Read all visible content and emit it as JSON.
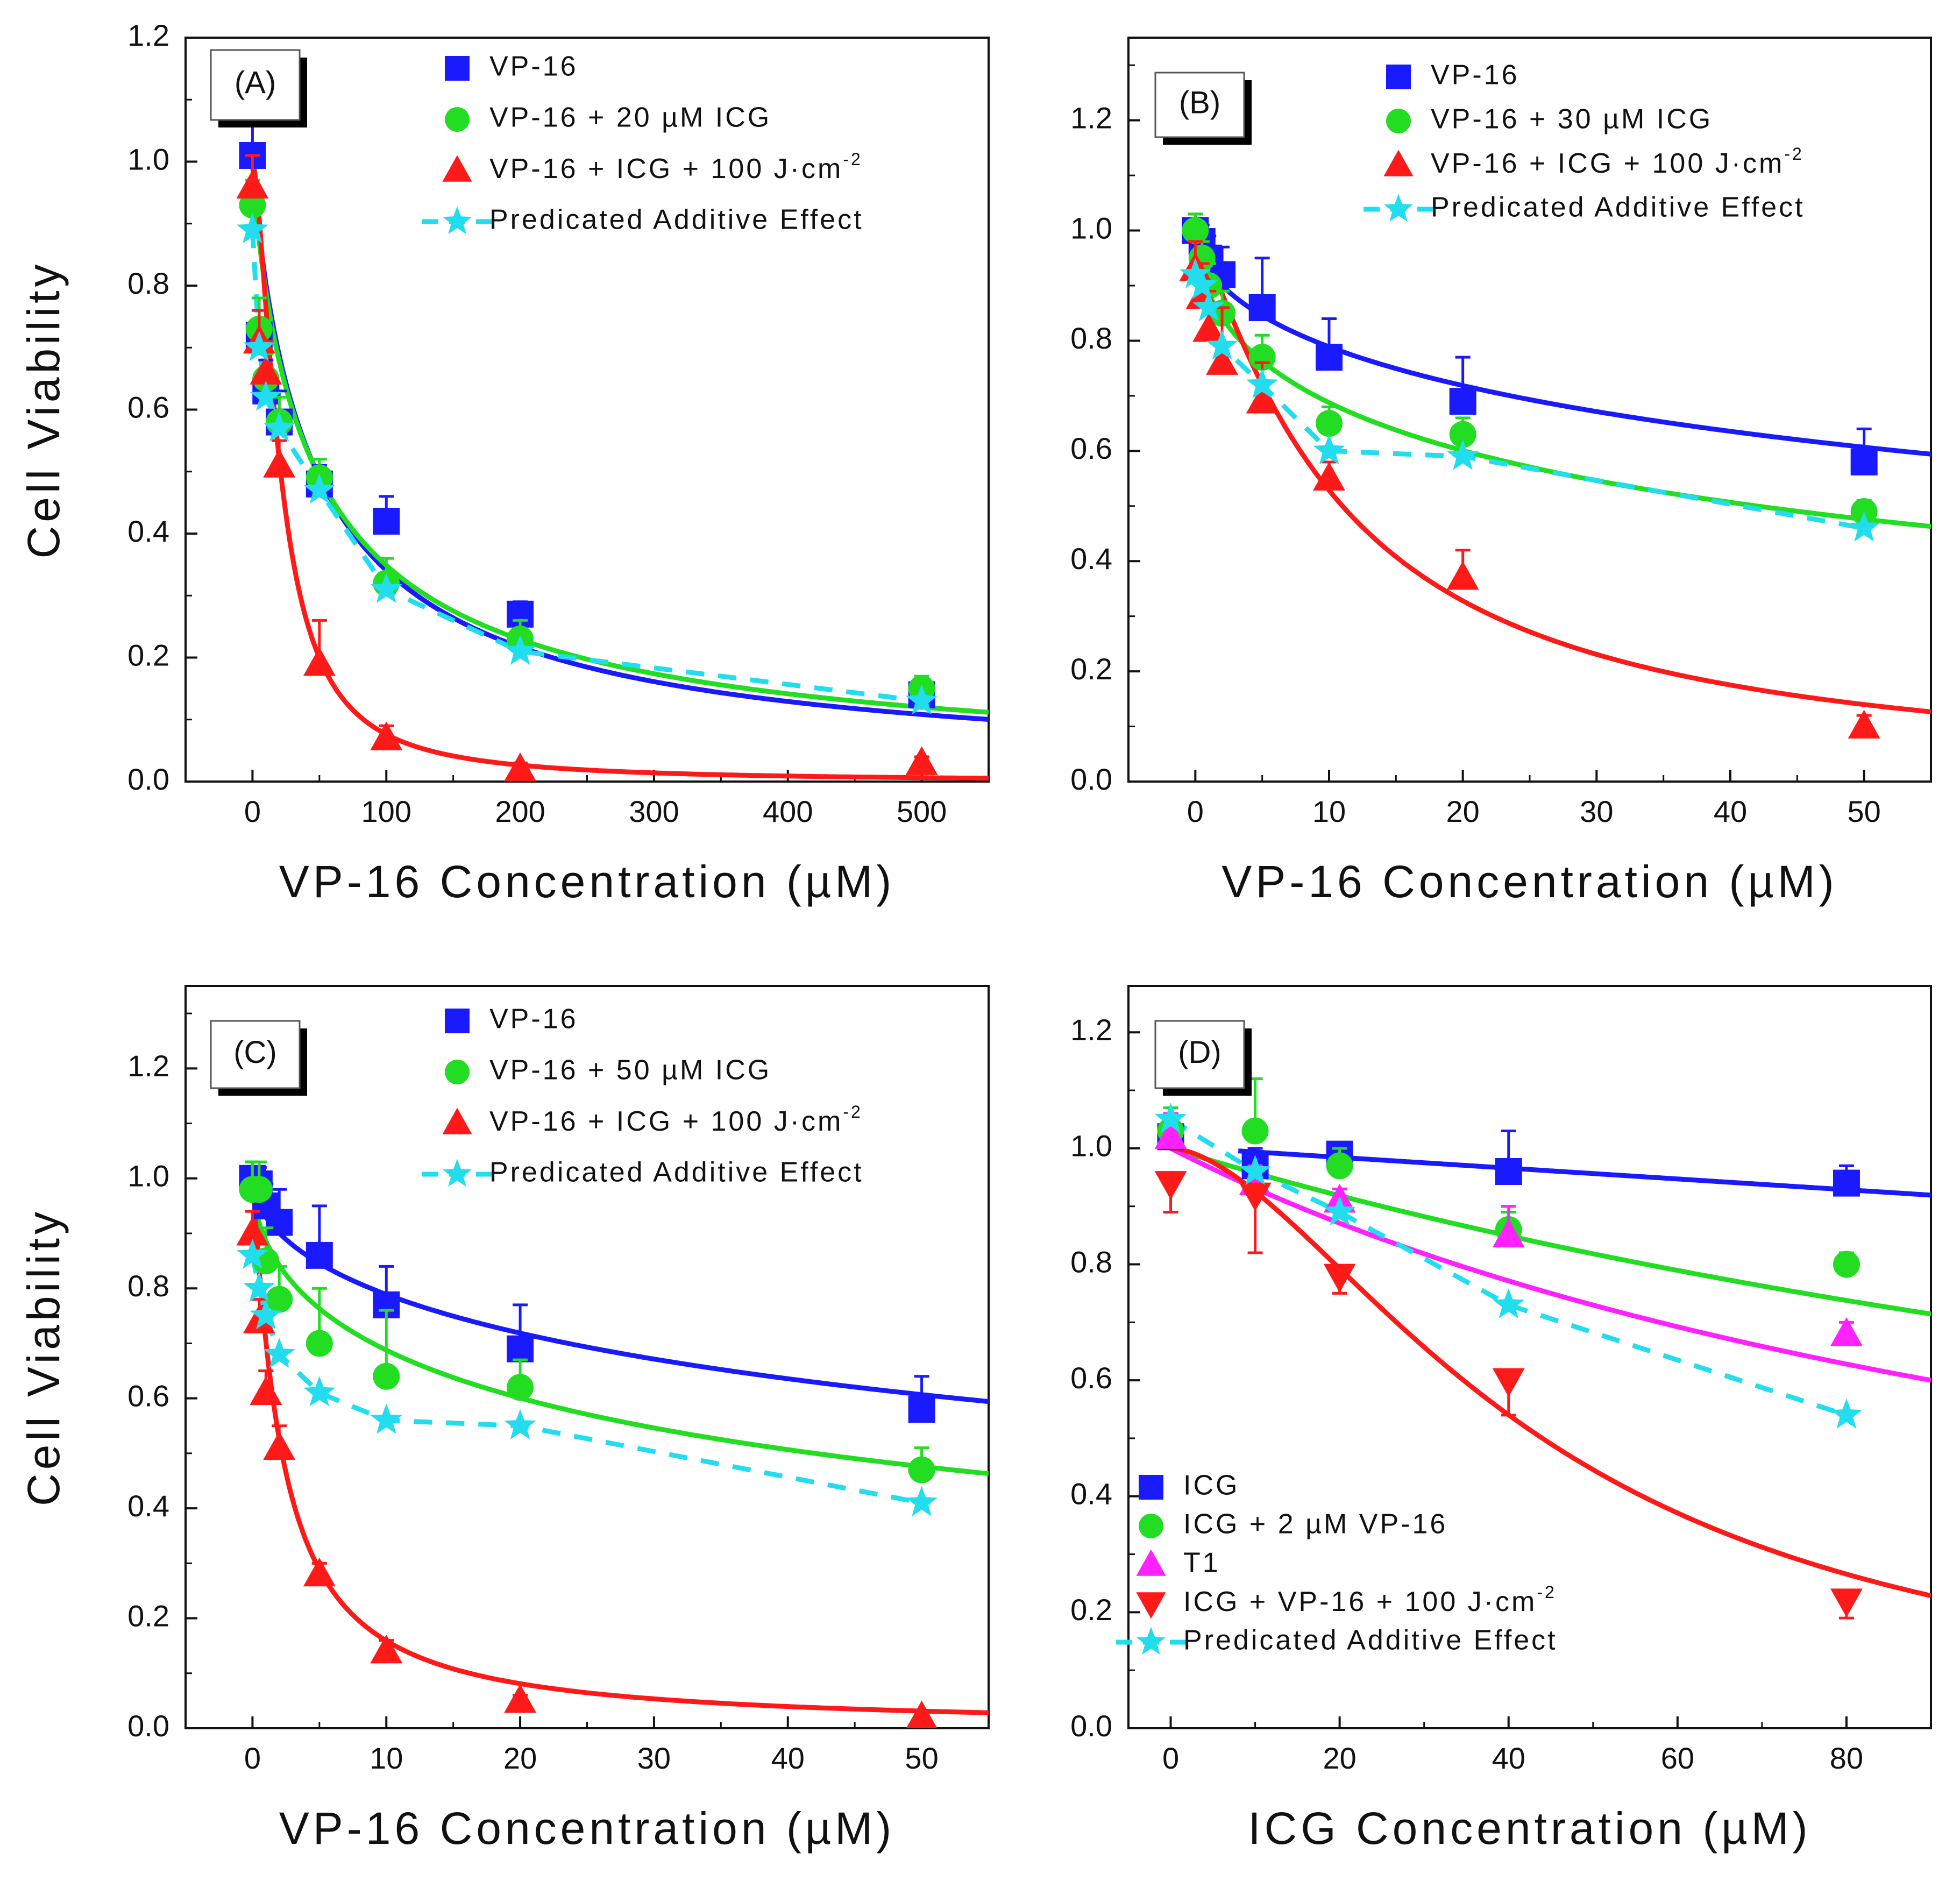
{
  "chart_data": [
    {
      "panel": "(A)",
      "type": "scatter",
      "xlabel": "VP-16 Concentration (µM)",
      "ylabel": "Cell Viability",
      "xlim": [
        -50,
        550
      ],
      "ylim": [
        0.0,
        1.2
      ],
      "xticks": [
        0,
        100,
        200,
        300,
        400,
        500
      ],
      "yticks": [
        0.0,
        0.2,
        0.4,
        0.6,
        0.8,
        1.0,
        1.2
      ],
      "xtick_labels": [
        "0",
        "100",
        "200",
        "300",
        "400",
        "500"
      ],
      "ytick_labels": [
        "0.0",
        "0.2",
        "0.4",
        "0.6",
        "0.8",
        "1.0",
        "1.2"
      ],
      "legend_position": "top-right",
      "series": [
        {
          "name": "VP-16",
          "marker": "square",
          "color": "#1a1aff",
          "x": [
            0,
            5,
            10,
            20,
            50,
            100,
            200,
            500
          ],
          "y": [
            1.01,
            0.72,
            0.63,
            0.58,
            0.48,
            0.42,
            0.27,
            0.14
          ],
          "err": [
            0.05,
            0.06,
            0.05,
            0.05,
            0.03,
            0.04,
            0.02,
            0.02
          ],
          "fit": {
            "model": "hill",
            "y0": 1.0,
            "ic50": 48,
            "n": 0.9
          }
        },
        {
          "name": "VP-16 + 20 µM ICG",
          "marker": "circle",
          "color": "#22dd22",
          "x": [
            0,
            5,
            10,
            20,
            50,
            100,
            200,
            500
          ],
          "y": [
            0.93,
            0.73,
            0.65,
            0.58,
            0.49,
            0.32,
            0.23,
            0.15
          ],
          "err": [
            0.04,
            0.05,
            0.04,
            0.04,
            0.03,
            0.04,
            0.03,
            0.02
          ],
          "fit": {
            "model": "hill",
            "y0": 1.0,
            "ic50": 48,
            "n": 0.85
          }
        },
        {
          "name": "VP-16 + ICG + 100 J·cm⁻²",
          "marker": "triangle",
          "color": "#ff1a1a",
          "x": [
            0,
            5,
            10,
            20,
            50,
            100,
            200,
            500
          ],
          "y": [
            0.96,
            0.71,
            0.66,
            0.51,
            0.19,
            0.07,
            0.02,
            0.03
          ],
          "err": [
            0.05,
            0.05,
            0.05,
            0.04,
            0.07,
            0.02,
            0.01,
            0.01
          ],
          "fit": {
            "model": "hill",
            "y0": 1.0,
            "ic50": 21,
            "n": 1.6
          }
        },
        {
          "name": "Predicated Additive Effect",
          "marker": "star",
          "color": "#22ddee",
          "dashed": true,
          "x": [
            0,
            5,
            10,
            20,
            50,
            100,
            200,
            500
          ],
          "y": [
            0.89,
            0.7,
            0.62,
            0.57,
            0.47,
            0.31,
            0.21,
            0.13
          ],
          "err": []
        }
      ]
    },
    {
      "panel": "(B)",
      "type": "scatter",
      "xlabel": "VP-16 Concentration (µM)",
      "ylabel": "",
      "xlim": [
        -5,
        55
      ],
      "ylim": [
        0.0,
        1.35
      ],
      "xticks": [
        0,
        10,
        20,
        30,
        40,
        50
      ],
      "yticks": [
        0.0,
        0.2,
        0.4,
        0.6,
        0.8,
        1.0,
        1.2
      ],
      "xtick_labels": [
        "0",
        "10",
        "20",
        "30",
        "40",
        "50"
      ],
      "ytick_labels": [
        "0.0",
        "0.2",
        "0.4",
        "0.6",
        "0.8",
        "1.0",
        "1.2"
      ],
      "legend_position": "top-right",
      "series": [
        {
          "name": "VP-16",
          "marker": "square",
          "color": "#1a1aff",
          "x": [
            0,
            0.5,
            1,
            2,
            5,
            10,
            20,
            50
          ],
          "y": [
            1.0,
            0.98,
            0.95,
            0.92,
            0.86,
            0.77,
            0.69,
            0.58
          ],
          "err": [
            0.03,
            0.03,
            0.04,
            0.05,
            0.09,
            0.07,
            0.08,
            0.06
          ],
          "fit": {
            "model": "hill",
            "y0": 1.0,
            "ic50": 110,
            "n": 0.55
          }
        },
        {
          "name": "VP-16 + 30 µM ICG",
          "marker": "circle",
          "color": "#22dd22",
          "x": [
            0,
            0.5,
            1,
            2,
            5,
            10,
            20,
            50
          ],
          "y": [
            1.0,
            0.95,
            0.9,
            0.85,
            0.77,
            0.65,
            0.63,
            0.49
          ],
          "err": [
            0.03,
            0.03,
            0.04,
            0.04,
            0.04,
            0.03,
            0.03,
            0.02
          ],
          "fit": {
            "model": "hill",
            "y0": 1.0,
            "ic50": 42,
            "n": 0.55
          }
        },
        {
          "name": "VP-16 + ICG + 100 J·cm⁻²",
          "marker": "triangle",
          "color": "#ff1a1a",
          "x": [
            0,
            0.5,
            1,
            2,
            5,
            10,
            20,
            50
          ],
          "y": [
            0.93,
            0.88,
            0.82,
            0.76,
            0.69,
            0.55,
            0.37,
            0.1
          ],
          "err": [
            0.05,
            0.06,
            0.07,
            0.1,
            0.07,
            0.03,
            0.05,
            0.02
          ],
          "fit": {
            "model": "hill",
            "y0": 1.0,
            "ic50": 11,
            "n": 1.2
          }
        },
        {
          "name": "Predicated Additive Effect",
          "marker": "star",
          "color": "#22ddee",
          "dashed": true,
          "x": [
            0,
            0.5,
            1,
            2,
            5,
            10,
            20,
            50
          ],
          "y": [
            0.92,
            0.9,
            0.86,
            0.79,
            0.72,
            0.6,
            0.59,
            0.46
          ],
          "err": []
        }
      ]
    },
    {
      "panel": "(C)",
      "type": "scatter",
      "xlabel": "VP-16 Concentration (µM)",
      "ylabel": "Cell Viability",
      "xlim": [
        -5,
        55
      ],
      "ylim": [
        0.0,
        1.35
      ],
      "xticks": [
        0,
        10,
        20,
        30,
        40,
        50
      ],
      "yticks": [
        0.0,
        0.2,
        0.4,
        0.6,
        0.8,
        1.0,
        1.2
      ],
      "xtick_labels": [
        "0",
        "10",
        "20",
        "30",
        "40",
        "50"
      ],
      "ytick_labels": [
        "0.0",
        "0.2",
        "0.4",
        "0.6",
        "0.8",
        "1.0",
        "1.2"
      ],
      "legend_position": "top-right",
      "series": [
        {
          "name": "VP-16",
          "marker": "square",
          "color": "#1a1aff",
          "x": [
            0,
            0.5,
            1,
            2,
            5,
            10,
            20,
            50
          ],
          "y": [
            1.0,
            0.99,
            0.95,
            0.92,
            0.86,
            0.77,
            0.69,
            0.58
          ],
          "err": [
            0.03,
            0.03,
            0.04,
            0.06,
            0.09,
            0.07,
            0.08,
            0.06
          ],
          "fit": {
            "model": "hill",
            "y0": 1.0,
            "ic50": 110,
            "n": 0.55
          }
        },
        {
          "name": "VP-16 + 50 µM ICG",
          "marker": "circle",
          "color": "#22dd22",
          "x": [
            0,
            0.5,
            1,
            2,
            5,
            10,
            20,
            50
          ],
          "y": [
            0.98,
            0.98,
            0.85,
            0.78,
            0.7,
            0.64,
            0.62,
            0.47
          ],
          "err": [
            0.05,
            0.05,
            0.06,
            0.06,
            0.1,
            0.12,
            0.05,
            0.04
          ],
          "fit": {
            "model": "hill",
            "y0": 1.0,
            "ic50": 42,
            "n": 0.55
          }
        },
        {
          "name": "VP-16 + ICG + 100 J·cm⁻²",
          "marker": "triangle",
          "color": "#ff1a1a",
          "x": [
            0,
            0.5,
            1,
            2,
            5,
            10,
            20,
            50
          ],
          "y": [
            0.9,
            0.74,
            0.61,
            0.51,
            0.28,
            0.14,
            0.05,
            0.02
          ],
          "err": [
            0.04,
            0.04,
            0.04,
            0.04,
            0.02,
            0.02,
            0.01,
            0.01
          ],
          "fit": {
            "model": "hill",
            "y0": 1.0,
            "ic50": 2.2,
            "n": 1.1
          }
        },
        {
          "name": "Predicated Additive Effect",
          "marker": "star",
          "color": "#22ddee",
          "dashed": true,
          "x": [
            0,
            0.5,
            1,
            2,
            5,
            10,
            20,
            50
          ],
          "y": [
            0.86,
            0.8,
            0.75,
            0.68,
            0.61,
            0.56,
            0.55,
            0.41
          ],
          "err": []
        }
      ]
    },
    {
      "panel": "(D)",
      "type": "scatter",
      "xlabel": "ICG Concentration (µM)",
      "ylabel": "",
      "xlim": [
        -5,
        90
      ],
      "ylim": [
        0.0,
        1.28
      ],
      "xticks": [
        0,
        20,
        40,
        60,
        80
      ],
      "yticks": [
        0.0,
        0.2,
        0.4,
        0.6,
        0.8,
        1.0,
        1.2
      ],
      "xtick_labels": [
        "0",
        "20",
        "40",
        "60",
        "80"
      ],
      "ytick_labels": [
        "0.0",
        "0.2",
        "0.4",
        "0.6",
        "0.8",
        "1.0",
        "1.2"
      ],
      "legend_position": "bottom-left",
      "series": [
        {
          "name": "ICG",
          "marker": "square",
          "color": "#1a1aff",
          "x": [
            0,
            10,
            20,
            40,
            80
          ],
          "y": [
            1.02,
            0.97,
            0.99,
            0.96,
            0.94
          ],
          "err": [
            0.04,
            0.03,
            0.02,
            0.07,
            0.03
          ],
          "fit": {
            "model": "linear",
            "a": 1.003,
            "b": -0.00093,
            "xmin": 8
          }
        },
        {
          "name": "ICG + 2 µM VP-16",
          "marker": "circle",
          "color": "#22dd22",
          "x": [
            0,
            10,
            20,
            40,
            80
          ],
          "y": [
            1.03,
            1.03,
            0.97,
            0.86,
            0.8
          ],
          "err": [
            0.04,
            0.09,
            0.03,
            0.03,
            0.02
          ],
          "fit": {
            "model": "hill",
            "y0": 1.0,
            "ic50": 225,
            "n": 1.0
          }
        },
        {
          "name": "T1",
          "marker": "triangle",
          "color": "#ff22ff",
          "x": [
            0,
            10,
            20,
            40,
            80
          ],
          "y": [
            1.02,
            0.94,
            0.91,
            0.85,
            0.68
          ],
          "err": [
            0.04,
            0.03,
            0.02,
            0.05,
            0.02
          ],
          "fit": {
            "model": "hill",
            "y0": 1.0,
            "ic50": 135,
            "n": 1.0
          }
        },
        {
          "name": "ICG + VP-16 + 100 J·cm⁻²",
          "marker": "triangle-down",
          "color": "#ff1a1a",
          "x": [
            0,
            10,
            20,
            40,
            80
          ],
          "y": [
            0.94,
            0.92,
            0.78,
            0.6,
            0.22
          ],
          "err": [
            0.05,
            0.1,
            0.03,
            0.06,
            0.03
          ],
          "fit": {
            "model": "hill",
            "y0": 1.0,
            "ic50": 44,
            "n": 1.7
          }
        },
        {
          "name": "Predicated Additive Effect",
          "marker": "star",
          "color": "#22ddee",
          "dashed": true,
          "x": [
            0,
            10,
            20,
            40,
            80
          ],
          "y": [
            1.05,
            0.96,
            0.89,
            0.73,
            0.54
          ],
          "err": []
        }
      ]
    }
  ]
}
